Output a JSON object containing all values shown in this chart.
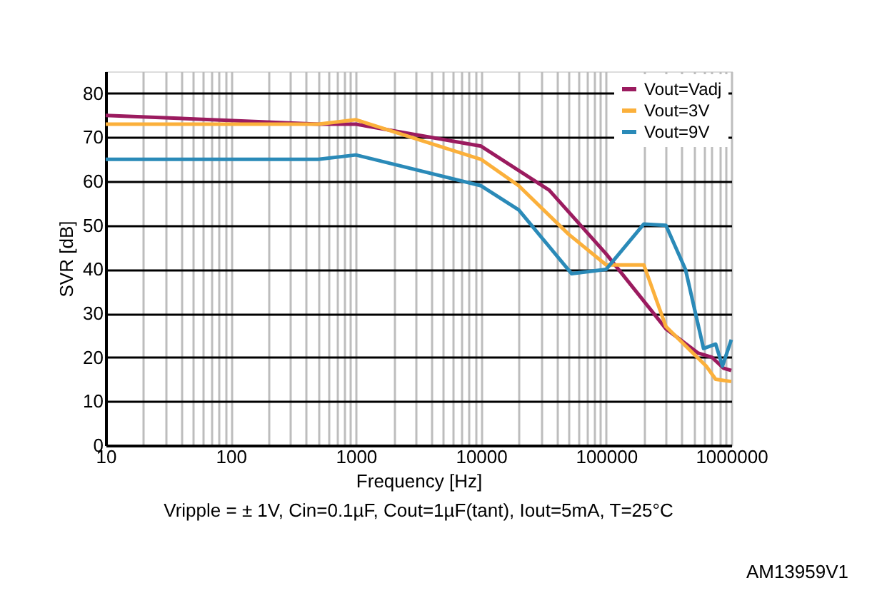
{
  "chart_data": {
    "type": "line",
    "xlabel": "Frequency [Hz]",
    "ylabel": "SVR [dB]",
    "log": "x",
    "xlim": [
      10,
      1000000
    ],
    "xticks": [
      10,
      {
        "value": 20,
        "label": null
      },
      {
        "value": 30,
        "label": null
      },
      {
        "value": 40,
        "label": null
      },
      {
        "value": 50,
        "label": null
      },
      {
        "value": 60,
        "label": null
      },
      {
        "value": 70,
        "label": null
      },
      {
        "value": 80,
        "label": null
      },
      {
        "value": 90,
        "label": null
      },
      100,
      {
        "value": 200,
        "label": null
      },
      {
        "value": 300,
        "label": null
      },
      {
        "value": 400,
        "label": null
      },
      {
        "value": 500,
        "label": null
      },
      {
        "value": 600,
        "label": null
      },
      {
        "value": 700,
        "label": null
      },
      {
        "value": 800,
        "label": null
      },
      {
        "value": 900,
        "label": null
      },
      1000,
      {
        "value": 2000,
        "label": null
      },
      {
        "value": 3000,
        "label": null
      },
      {
        "value": 4000,
        "label": null
      },
      {
        "value": 5000,
        "label": null
      },
      {
        "value": 6000,
        "label": null
      },
      {
        "value": 7000,
        "label": null
      },
      {
        "value": 8000,
        "label": null
      },
      {
        "value": 9000,
        "label": null
      },
      10000,
      {
        "value": 20000,
        "label": null
      },
      {
        "value": 30000,
        "label": null
      },
      {
        "value": 40000,
        "label": null
      },
      {
        "value": 50000,
        "label": null
      },
      {
        "value": 60000,
        "label": null
      },
      {
        "value": 70000,
        "label": null
      },
      {
        "value": 80000,
        "label": null
      },
      {
        "value": 90000,
        "label": null
      },
      100000,
      {
        "value": 200000,
        "label": null
      },
      {
        "value": 300000,
        "label": null
      },
      {
        "value": 400000,
        "label": null
      },
      {
        "value": 500000,
        "label": null
      },
      {
        "value": 600000,
        "label": null
      },
      {
        "value": 700000,
        "label": null
      },
      {
        "value": 800000,
        "label": null
      },
      {
        "value": 900000,
        "label": null
      },
      1000000
    ],
    "ylim": [
      0,
      85
    ],
    "yticks": [
      0,
      10,
      20,
      30,
      40,
      50,
      60,
      70,
      80
    ],
    "grid": true,
    "legend": "top right",
    "marker": "none",
    "line_style": "solid",
    "annotations": [
      "Vripple = ± 1V, Cin=0.1µF, Cout=1µF(tant), Iout=5mA, T=25°C",
      "AM13959V1"
    ],
    "series": [
      {
        "name": "Vout=Vadj",
        "color": "#9b1b5f",
        "x": [
          10,
          500,
          1000,
          10000,
          35000,
          100000,
          300000,
          540000,
          700000,
          870000,
          1000000
        ],
        "values": [
          75,
          73,
          73,
          68,
          58,
          43.5,
          26.5,
          21,
          20,
          17.5,
          17
        ]
      },
      {
        "name": "Vout=3V",
        "color": "#fbb03b",
        "x": [
          10,
          500,
          1000,
          10000,
          20000,
          50000,
          100000,
          200000,
          300000,
          630000,
          750000,
          1000000
        ],
        "values": [
          73,
          73,
          74,
          65,
          59,
          48,
          41,
          41,
          27,
          18,
          15,
          14.5
        ]
      },
      {
        "name": "Vout=9V",
        "color": "#2a8ab8",
        "x": [
          10,
          500,
          1000,
          10000,
          20000,
          53000,
          100000,
          200000,
          300000,
          430000,
          600000,
          750000,
          850000,
          1000000
        ],
        "values": [
          65,
          65,
          66,
          59,
          53.5,
          39,
          40,
          50.3,
          50,
          40,
          22,
          23,
          18,
          24
        ]
      }
    ]
  }
}
